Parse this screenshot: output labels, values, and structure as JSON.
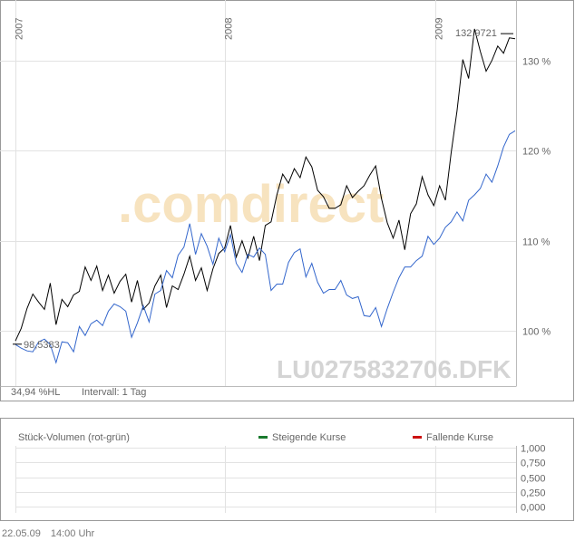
{
  "chart_data": [
    {
      "type": "line",
      "instrument_label": "LU0275832706.DFK",
      "watermark": ".comdirect",
      "year_labels": [
        "2007",
        "2008",
        "2009"
      ],
      "y_ticks": [
        {
          "value": 100,
          "label": "100 %"
        },
        {
          "value": 110,
          "label": "110 %"
        },
        {
          "value": 120,
          "label": "120 %"
        },
        {
          "value": 130,
          "label": "130 %"
        }
      ],
      "ylim": [
        94.5,
        136.2
      ],
      "start_annotation": "98,5383",
      "max_annotation": "132,9721",
      "footer_left": "34,94 %HL",
      "interval_label": "Intervall: 1 Tag",
      "series": [
        {
          "color": "#000000",
          "values": [
            98.9,
            100.3,
            102.5,
            104.1,
            103.2,
            102.4,
            105.3,
            100.7,
            103.5,
            102.7,
            104.0,
            104.4,
            107.1,
            105.6,
            107.2,
            104.5,
            106.2,
            104.2,
            105.5,
            106.3,
            103.2,
            105.6,
            102.4,
            103.1,
            105.0,
            106.2,
            102.6,
            105.0,
            104.6,
            106.3,
            108.3,
            105.6,
            107.0,
            104.5,
            106.9,
            108.6,
            109.2,
            111.7,
            108.2,
            110.0,
            108.1,
            110.5,
            107.8,
            111.7,
            112.1,
            115.1,
            117.4,
            116.4,
            118.0,
            117.0,
            119.3,
            118.2,
            115.6,
            114.9,
            113.6,
            113.6,
            114.0,
            116.1,
            114.8,
            115.5,
            116.1,
            117.3,
            118.3,
            114.7,
            112.0,
            110.3,
            112.3,
            109.0,
            113.0,
            114.1,
            117.1,
            115.1,
            113.9,
            116.1,
            114.5,
            119.8,
            124.4,
            130.1,
            128.0,
            133.5,
            131.0,
            128.8,
            130.0,
            131.6,
            130.8,
            132.5,
            132.4
          ]
        },
        {
          "color": "#3366cc",
          "values": [
            98.5,
            98.1,
            97.8,
            97.7,
            98.8,
            99.1,
            98.5,
            96.5,
            98.8,
            98.7,
            97.7,
            100.5,
            99.5,
            100.8,
            101.2,
            100.6,
            102.2,
            103.0,
            102.7,
            102.2,
            99.3,
            100.9,
            102.8,
            101.0,
            104.1,
            104.5,
            106.7,
            105.9,
            108.4,
            109.3,
            111.9,
            108.5,
            110.8,
            109.4,
            107.4,
            110.3,
            108.8,
            110.7,
            107.5,
            106.5,
            108.5,
            108.2,
            109.2,
            108.5,
            104.5,
            105.2,
            105.2,
            107.6,
            108.7,
            109.1,
            106.0,
            107.5,
            105.4,
            104.2,
            104.6,
            104.6,
            105.6,
            104.0,
            103.6,
            103.8,
            101.7,
            101.6,
            102.6,
            100.5,
            102.5,
            104.3,
            105.9,
            107.1,
            107.1,
            107.8,
            108.3,
            110.5,
            109.6,
            110.3,
            111.5,
            112.1,
            113.2,
            112.2,
            114.5,
            115.1,
            115.8,
            117.4,
            116.5,
            118.3,
            120.4,
            121.8,
            122.2
          ]
        }
      ]
    },
    {
      "type": "bar",
      "title": "Stück-Volumen (rot-grün)",
      "legend": [
        {
          "label": "Steigende Kurse",
          "color": "#1a7a2e"
        },
        {
          "label": "Fallende Kurse",
          "color": "#cc1111"
        }
      ],
      "y_ticks": [
        "1,000",
        "0,750",
        "0,500",
        "0,250",
        "0,000"
      ],
      "values": []
    }
  ],
  "footer": {
    "date": "22.05.09",
    "time": "14:00 Uhr"
  }
}
